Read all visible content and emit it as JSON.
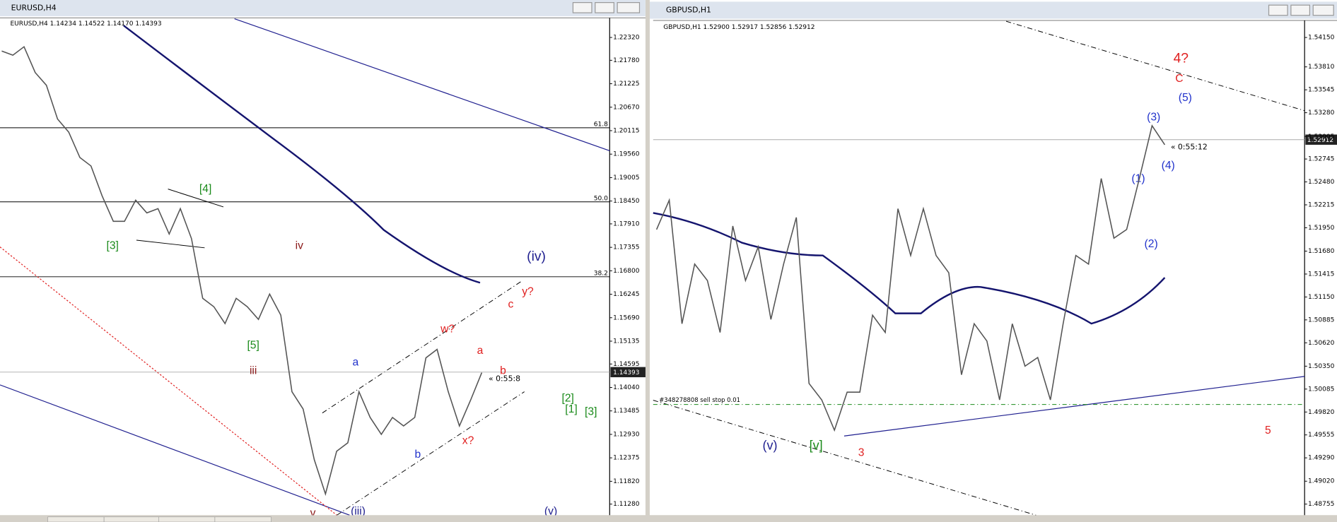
{
  "windows": [
    {
      "title": "EURUSD,H4",
      "header": "EURUSD,H4  1.14234 1.14522 1.14170 1.14393",
      "price_tag": "1.14393",
      "countdown": "« 0:55:8",
      "fib_levels": [
        "61.8",
        "50.0",
        "38.2"
      ],
      "wave_labels": [
        "[4]",
        "[3]",
        "[5]",
        "iii",
        "iv",
        "(iv)",
        "a",
        "b",
        "c",
        "y?",
        "w?",
        "x?",
        "a",
        "b",
        "v",
        "(iii)",
        "(v)",
        "[2]",
        "[1]",
        "[3]"
      ]
    },
    {
      "title": "GBPUSD,H1",
      "header": "GBPUSD,H1  1.52900 1.52917 1.52856 1.52912",
      "price_tag": "1.52912",
      "countdown": "« 0:55:12",
      "order_label": "#348278808 sell stop 0.01",
      "wave_labels": [
        "4?",
        "C",
        "(5)",
        "(3)",
        "(4)",
        "(1)",
        "(2)",
        "(v)",
        "[v]",
        "3",
        "5"
      ]
    }
  ],
  "chart_data": [
    {
      "type": "line",
      "color": "#555555",
      "values": [
        1.22,
        1.219,
        1.221,
        1.2149,
        1.2119,
        1.2039,
        1.2008,
        1.1948,
        1.1928,
        1.1857,
        1.1797,
        1.1797,
        1.1847,
        1.1817,
        1.1827,
        1.1767,
        1.1827,
        1.1756,
        1.1615,
        1.1595,
        1.1555,
        1.1615,
        1.1595,
        1.1565,
        1.1625,
        1.1575,
        1.1394,
        1.1353,
        1.1233,
        1.1152,
        1.1253,
        1.1273,
        1.1394,
        1.1333,
        1.1293,
        1.1333,
        1.1313,
        1.1333,
        1.1474,
        1.1494,
        1.1394,
        1.1313,
        1.1374,
        1.1439
      ],
      "ylim": [
        1.11018,
        1.22763
      ],
      "yticks": [
        {
          "value": 1.2232,
          "label": "1.22320"
        },
        {
          "value": 1.2178,
          "label": "1.21780"
        },
        {
          "value": 1.21225,
          "label": "1.21225"
        },
        {
          "value": 1.2067,
          "label": "1.20670"
        },
        {
          "value": 1.20115,
          "label": "1.20115"
        },
        {
          "value": 1.1956,
          "label": "1.19560"
        },
        {
          "value": 1.19005,
          "label": "1.19005"
        },
        {
          "value": 1.1845,
          "label": "1.18450"
        },
        {
          "value": 1.1791,
          "label": "1.17910"
        },
        {
          "value": 1.17355,
          "label": "1.17355"
        },
        {
          "value": 1.168,
          "label": "1.16800"
        },
        {
          "value": 1.16245,
          "label": "1.16245"
        },
        {
          "value": 1.1569,
          "label": "1.15690"
        },
        {
          "value": 1.15135,
          "label": "1.15135"
        },
        {
          "value": 1.14595,
          "label": "1.14595"
        },
        {
          "value": 1.1404,
          "label": "1.14040"
        },
        {
          "value": 1.13485,
          "label": "1.13485"
        },
        {
          "value": 1.1293,
          "label": "1.12930"
        },
        {
          "value": 1.12375,
          "label": "1.12375"
        },
        {
          "value": 1.1182,
          "label": "1.11820"
        },
        {
          "value": 1.1128,
          "label": "1.11280"
        }
      ]
    },
    {
      "type": "line",
      "color": "#555555",
      "values": [
        1.5193,
        1.5227,
        1.5084,
        1.5153,
        1.5134,
        1.5074,
        1.5197,
        1.5134,
        1.5173,
        1.5089,
        1.5153,
        1.5207,
        1.5015,
        1.4996,
        1.4961,
        1.5005,
        1.5005,
        1.5094,
        1.5074,
        1.5217,
        1.5163,
        1.5217,
        1.5163,
        1.5143,
        1.5025,
        1.5084,
        1.5064,
        1.4996,
        1.5084,
        1.5035,
        1.5045,
        1.4996,
        1.5084,
        1.5163,
        1.5153,
        1.5252,
        1.5183,
        1.5193,
        1.5252,
        1.5313,
        1.5291
      ],
      "ylim": [
        1.48627,
        1.54347
      ],
      "yticks": [
        {
          "value": 1.5415,
          "label": "1.54150"
        },
        {
          "value": 1.5381,
          "label": "1.53810"
        },
        {
          "value": 1.53545,
          "label": "1.53545"
        },
        {
          "value": 1.5328,
          "label": "1.53280"
        },
        {
          "value": 1.53005,
          "label": "1.53005"
        },
        {
          "value": 1.52745,
          "label": "1.52745"
        },
        {
          "value": 1.5248,
          "label": "1.52480"
        },
        {
          "value": 1.52215,
          "label": "1.52215"
        },
        {
          "value": 1.5195,
          "label": "1.51950"
        },
        {
          "value": 1.5168,
          "label": "1.51680"
        },
        {
          "value": 1.51415,
          "label": "1.51415"
        },
        {
          "value": 1.5115,
          "label": "1.51150"
        },
        {
          "value": 1.50885,
          "label": "1.50885"
        },
        {
          "value": 1.5062,
          "label": "1.50620"
        },
        {
          "value": 1.5035,
          "label": "1.50350"
        },
        {
          "value": 1.50085,
          "label": "1.50085"
        },
        {
          "value": 1.4982,
          "label": "1.49820"
        },
        {
          "value": 1.49555,
          "label": "1.49555"
        },
        {
          "value": 1.4929,
          "label": "1.49290"
        },
        {
          "value": 1.4902,
          "label": "1.49020"
        },
        {
          "value": 1.48755,
          "label": "1.48755"
        }
      ]
    }
  ]
}
